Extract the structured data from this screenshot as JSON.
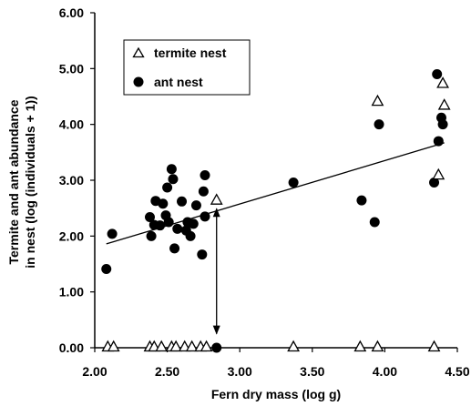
{
  "chart_data": {
    "type": "scatter",
    "xlabel": "Fern dry mass (log g)",
    "ylabel_lines": [
      "Termite and ant abundance",
      "in nest (log (individuals + 1))"
    ],
    "xlim": [
      2.0,
      4.5
    ],
    "ylim": [
      0.0,
      6.0
    ],
    "x_ticks": [
      "2.00",
      "2.50",
      "3.00",
      "3.50",
      "4.00",
      "4.50"
    ],
    "y_ticks": [
      "0.00",
      "1.00",
      "2.00",
      "3.00",
      "4.00",
      "5.00",
      "6.00"
    ],
    "legend_position": "top-left",
    "grid": false,
    "series": [
      {
        "name": "termite nest",
        "marker": "triangle-open",
        "points": [
          [
            2.09,
            0.0
          ],
          [
            2.13,
            0.0
          ],
          [
            2.38,
            0.0
          ],
          [
            2.41,
            0.0
          ],
          [
            2.46,
            0.0
          ],
          [
            2.53,
            0.0
          ],
          [
            2.56,
            0.0
          ],
          [
            2.62,
            0.0
          ],
          [
            2.67,
            0.0
          ],
          [
            2.73,
            0.0
          ],
          [
            2.77,
            0.0
          ],
          [
            2.84,
            2.63
          ],
          [
            3.37,
            0.0
          ],
          [
            3.83,
            0.0
          ],
          [
            3.95,
            4.4
          ],
          [
            3.95,
            0.0
          ],
          [
            4.34,
            0.0
          ],
          [
            4.37,
            3.08
          ],
          [
            4.4,
            4.72
          ],
          [
            4.41,
            4.33
          ]
        ]
      },
      {
        "name": "ant nest",
        "marker": "circle-filled",
        "points": [
          [
            2.08,
            1.41
          ],
          [
            2.12,
            2.04
          ],
          [
            2.38,
            2.34
          ],
          [
            2.39,
            2.0
          ],
          [
            2.41,
            2.2
          ],
          [
            2.42,
            2.63
          ],
          [
            2.45,
            2.19
          ],
          [
            2.47,
            2.58
          ],
          [
            2.49,
            2.37
          ],
          [
            2.5,
            2.87
          ],
          [
            2.51,
            2.25
          ],
          [
            2.53,
            3.2
          ],
          [
            2.54,
            3.02
          ],
          [
            2.55,
            1.78
          ],
          [
            2.57,
            2.13
          ],
          [
            2.6,
            2.62
          ],
          [
            2.63,
            2.1
          ],
          [
            2.64,
            2.25
          ],
          [
            2.66,
            2.0
          ],
          [
            2.68,
            2.22
          ],
          [
            2.7,
            2.55
          ],
          [
            2.74,
            1.67
          ],
          [
            2.75,
            2.8
          ],
          [
            2.76,
            2.35
          ],
          [
            2.76,
            3.09
          ],
          [
            2.84,
            0.0
          ],
          [
            3.37,
            2.96
          ],
          [
            3.84,
            2.64
          ],
          [
            3.93,
            2.25
          ],
          [
            3.96,
            4.0
          ],
          [
            4.34,
            2.96
          ],
          [
            4.36,
            4.9
          ],
          [
            4.37,
            3.7
          ],
          [
            4.39,
            4.12
          ],
          [
            4.4,
            4.0
          ]
        ]
      }
    ],
    "trend_line": {
      "x": [
        2.08,
        4.41
      ],
      "y": [
        1.86,
        3.67
      ]
    },
    "arrow": {
      "x": 2.84,
      "y_from": 2.49,
      "y_to": 0.25
    }
  }
}
